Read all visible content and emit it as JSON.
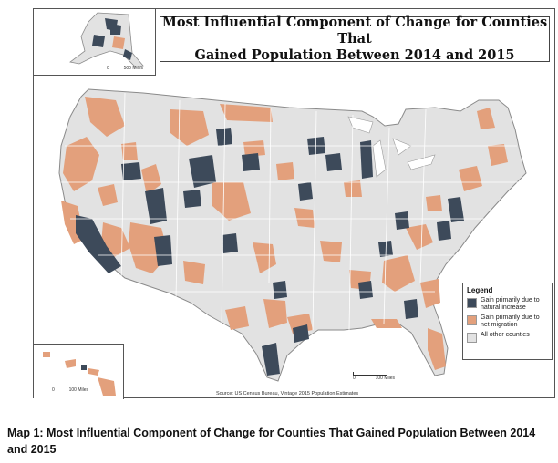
{
  "map": {
    "title": "Most Influential Component of Change for Counties That Gained Population Between 2014 and 2015",
    "title_line1": "Most Influential Component of Change for Counties That",
    "title_line2": "Gained Population Between 2014 and 2015",
    "source": "Source:  US Census Bureau, Vintage 2015 Population Estimates",
    "scale_main": {
      "zero": "0",
      "label": "100 Miles"
    },
    "scale_alaska": {
      "zero": "0",
      "label": "500 Miles"
    },
    "scale_hawaii": {
      "zero": "0",
      "label": "100 Miles"
    }
  },
  "legend": {
    "title": "Legend",
    "items": [
      {
        "label": "Gain primarily due to natural increase",
        "color": "#3d4a5a"
      },
      {
        "label": "Gain primarily due to net migration",
        "color": "#e3a07c"
      },
      {
        "label": "All other counties",
        "color": "#e2e2e2"
      }
    ]
  },
  "colors": {
    "natural_increase": "#3d4a5a",
    "net_migration": "#e3a07c",
    "other": "#e2e2e2",
    "boundary": "#ffffff"
  },
  "caption": "Map 1: Most Influential Component of Change for Counties That Gained Population Between 2014 and 2015"
}
